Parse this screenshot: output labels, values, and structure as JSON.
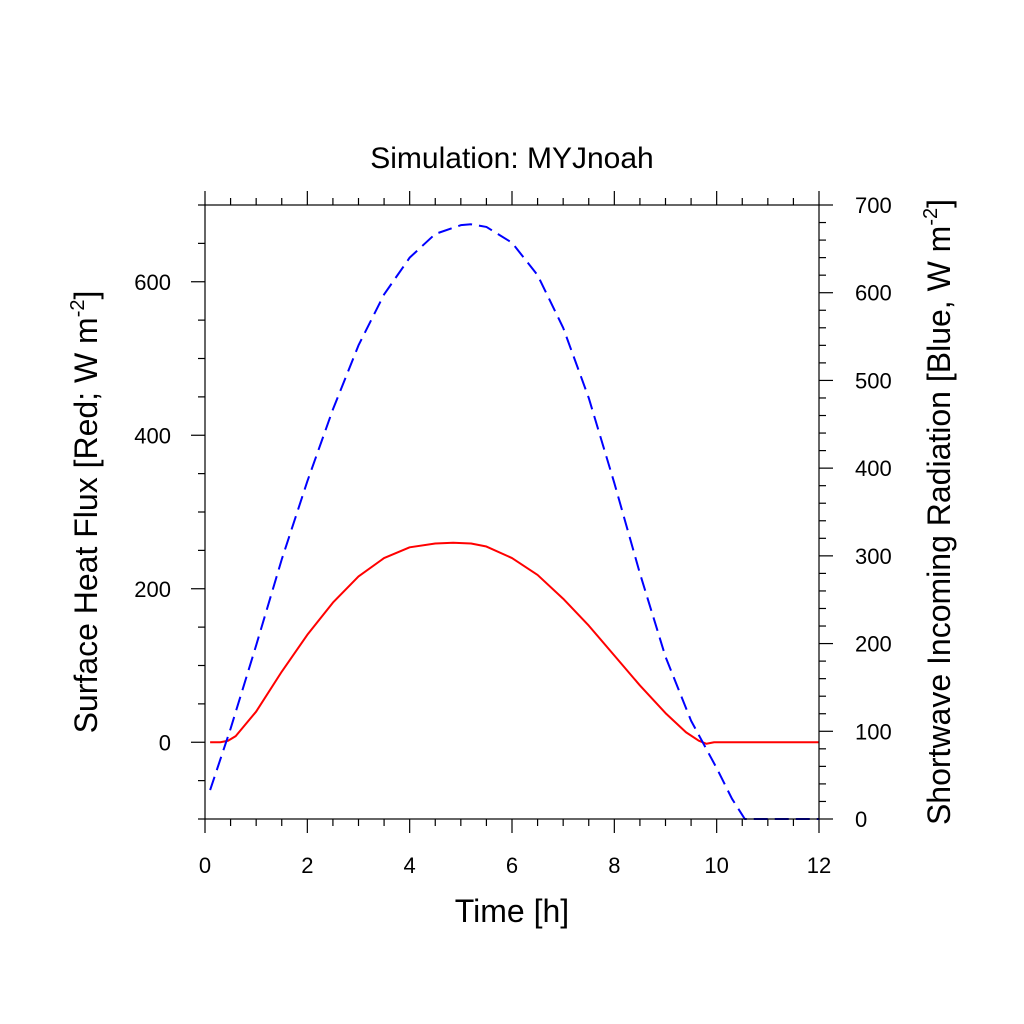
{
  "chart_data": {
    "type": "line",
    "title": "Simulation: MYJnoah",
    "xlabel": "Time [h]",
    "ylabel_left": {
      "main": "Surface Heat Flux [Red; W m",
      "sup": "-2",
      "end": "]"
    },
    "ylabel_right": {
      "main": "Shortwave Incoming Radiation [Blue, W m",
      "sup": "-2",
      "end": "]"
    },
    "xlim": [
      0,
      12
    ],
    "ylim_left": [
      -100,
      700
    ],
    "ylim_right": [
      0,
      700
    ],
    "x_ticks": [
      0,
      2,
      4,
      6,
      8,
      10,
      12
    ],
    "y_ticks_left": [
      0,
      200,
      400,
      600
    ],
    "y_ticks_right": [
      0,
      100,
      200,
      300,
      400,
      500,
      600,
      700
    ],
    "grid": false,
    "series": [
      {
        "axis": "left",
        "color": "#ff0000",
        "style": "solid",
        "x": [
          0.1,
          0.3,
          0.45,
          0.6,
          1.0,
          1.5,
          2.0,
          2.5,
          3.0,
          3.5,
          4.0,
          4.5,
          4.85,
          5.2,
          5.5,
          6.0,
          6.5,
          7.0,
          7.5,
          8.0,
          8.5,
          9.0,
          9.4,
          9.65,
          9.8,
          9.95,
          10.2,
          11.0,
          12.0
        ],
        "y": [
          0,
          0,
          2,
          8,
          40,
          92,
          140,
          182,
          216,
          240,
          254,
          259,
          260,
          259,
          255,
          240,
          218,
          187,
          152,
          113,
          74,
          38,
          13,
          2,
          -2,
          0,
          0,
          0,
          0
        ]
      },
      {
        "axis": "right",
        "color": "#0000ff",
        "style": "dashed",
        "x": [
          0.1,
          0.5,
          1.0,
          1.5,
          2.0,
          2.5,
          3.0,
          3.5,
          4.0,
          4.5,
          5.0,
          5.2,
          5.5,
          6.0,
          6.5,
          7.0,
          7.5,
          8.0,
          8.5,
          9.0,
          9.5,
          10.0,
          10.3,
          10.55,
          11.0,
          12.0
        ],
        "y": [
          33,
          103,
          198,
          296,
          385,
          467,
          540,
          598,
          640,
          667,
          677,
          678,
          675,
          657,
          620,
          560,
          480,
          383,
          280,
          185,
          112,
          58,
          23,
          0,
          0,
          0
        ]
      }
    ]
  }
}
